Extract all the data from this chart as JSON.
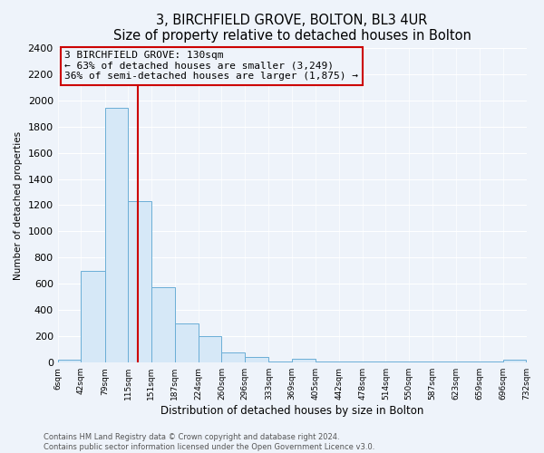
{
  "title": "3, BIRCHFIELD GROVE, BOLTON, BL3 4UR",
  "subtitle": "Size of property relative to detached houses in Bolton",
  "xlabel": "Distribution of detached houses by size in Bolton",
  "ylabel": "Number of detached properties",
  "bin_edges": [
    6,
    42,
    79,
    115,
    151,
    187,
    224,
    260,
    296,
    333,
    369,
    405,
    442,
    478,
    514,
    550,
    587,
    623,
    659,
    696,
    732
  ],
  "bin_counts": [
    20,
    700,
    1940,
    1230,
    575,
    300,
    200,
    80,
    45,
    5,
    30,
    5,
    5,
    5,
    5,
    5,
    5,
    5,
    5,
    20
  ],
  "bar_facecolor": "#d6e8f7",
  "bar_edgecolor": "#6baed6",
  "property_line_x": 130,
  "property_line_color": "#cc0000",
  "annotation_title": "3 BIRCHFIELD GROVE: 130sqm",
  "annotation_line1": "← 63% of detached houses are smaller (3,249)",
  "annotation_line2": "36% of semi-detached houses are larger (1,875) →",
  "annotation_box_edgecolor": "#cc0000",
  "annotation_box_facecolor": "#eef3fa",
  "ylim": [
    0,
    2400
  ],
  "yticks": [
    0,
    200,
    400,
    600,
    800,
    1000,
    1200,
    1400,
    1600,
    1800,
    2000,
    2200,
    2400
  ],
  "xtick_labels": [
    "6sqm",
    "42sqm",
    "79sqm",
    "115sqm",
    "151sqm",
    "187sqm",
    "224sqm",
    "260sqm",
    "296sqm",
    "333sqm",
    "369sqm",
    "405sqm",
    "442sqm",
    "478sqm",
    "514sqm",
    "550sqm",
    "587sqm",
    "623sqm",
    "659sqm",
    "696sqm",
    "732sqm"
  ],
  "footer1": "Contains HM Land Registry data © Crown copyright and database right 2024.",
  "footer2": "Contains public sector information licensed under the Open Government Licence v3.0.",
  "bg_color": "#eef3fa",
  "grid_color": "#ffffff",
  "title_fontsize": 10.5,
  "subtitle_fontsize": 8.5,
  "xlabel_fontsize": 8.5,
  "ylabel_fontsize": 7.5,
  "ytick_fontsize": 8,
  "xtick_fontsize": 6.5,
  "annotation_fontsize": 8,
  "footer_fontsize": 6
}
